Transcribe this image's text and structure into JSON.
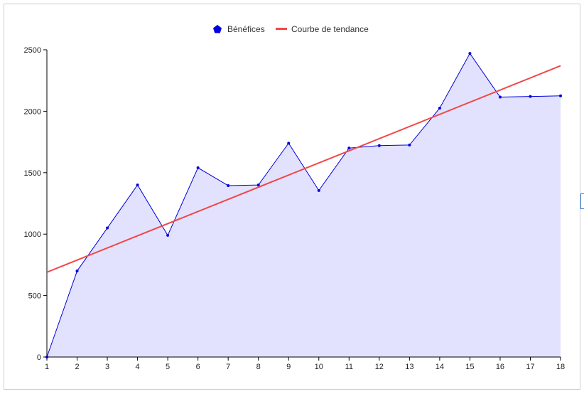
{
  "chart_data": {
    "type": "area",
    "title": "",
    "xlabel": "",
    "ylabel": "",
    "x": [
      1,
      2,
      3,
      4,
      5,
      6,
      7,
      8,
      9,
      10,
      11,
      12,
      13,
      14,
      15,
      16,
      17,
      18
    ],
    "xlim": [
      1,
      18
    ],
    "ylim": [
      0,
      2500
    ],
    "y_ticks": [
      "0",
      "500",
      "1000",
      "1500",
      "2000",
      "2500"
    ],
    "x_ticks": [
      "1",
      "2",
      "3",
      "4",
      "5",
      "6",
      "7",
      "8",
      "9",
      "10",
      "11",
      "12",
      "13",
      "14",
      "15",
      "16",
      "17",
      "18"
    ],
    "series": [
      {
        "name": "Bénéfices",
        "type": "area",
        "values": [
          0,
          700,
          1050,
          1400,
          990,
          1540,
          1395,
          1400,
          1740,
          1355,
          1700,
          1720,
          1725,
          2025,
          2470,
          2115,
          2120,
          2125
        ],
        "line_color": "#0000dd",
        "fill_color": "#e2e2ff",
        "marker": "point"
      },
      {
        "name": "Courbe de tendance",
        "type": "line",
        "start": [
          1,
          690
        ],
        "end": [
          18,
          2370
        ],
        "line_color": "#f04848"
      }
    ],
    "legend": {
      "position": "top-center",
      "items": [
        {
          "label": "Bénéfices",
          "symbol": "pentagon",
          "color": "#0000dd"
        },
        {
          "label": "Courbe de tendance",
          "symbol": "line",
          "color": "#f04848"
        }
      ]
    },
    "grid": false
  }
}
